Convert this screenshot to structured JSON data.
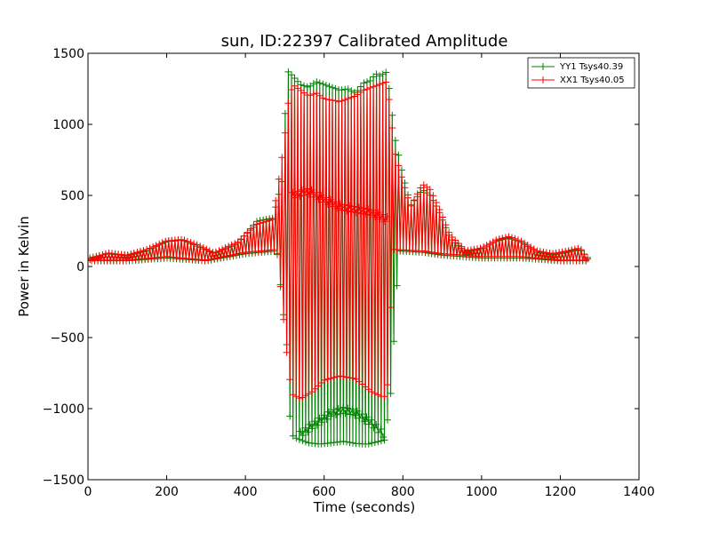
{
  "chart_data": {
    "type": "line",
    "title": "sun, ID:22397 Calibrated Amplitude",
    "xlabel": "Time (seconds)",
    "ylabel": "Power in Kelvin",
    "xlim": [
      0,
      1400
    ],
    "ylim": [
      -1500,
      1500
    ],
    "xticks": [
      0,
      200,
      400,
      600,
      800,
      1000,
      1200,
      1400
    ],
    "yticks": [
      -1500,
      -1000,
      -500,
      0,
      500,
      1000,
      1500
    ],
    "grid": false,
    "legend_position": "top-right",
    "marker": "+",
    "series": [
      {
        "name": "YY1 Tsys40.39",
        "color": "#008000",
        "upper": [
          [
            5,
            60
          ],
          [
            50,
            90
          ],
          [
            100,
            75
          ],
          [
            150,
            110
          ],
          [
            200,
            175
          ],
          [
            240,
            185
          ],
          [
            280,
            140
          ],
          [
            320,
            90
          ],
          [
            380,
            160
          ],
          [
            430,
            320
          ],
          [
            470,
            340
          ],
          [
            495,
            620
          ],
          [
            500,
            1000
          ],
          [
            505,
            1380
          ],
          [
            520,
            1340
          ],
          [
            540,
            1280
          ],
          [
            560,
            1260
          ],
          [
            580,
            1300
          ],
          [
            600,
            1280
          ],
          [
            620,
            1260
          ],
          [
            640,
            1240
          ],
          [
            660,
            1250
          ],
          [
            680,
            1220
          ],
          [
            700,
            1290
          ],
          [
            720,
            1310
          ],
          [
            730,
            1360
          ],
          [
            740,
            1340
          ],
          [
            760,
            1370
          ],
          [
            780,
            900
          ],
          [
            800,
            640
          ],
          [
            820,
            430
          ],
          [
            850,
            540
          ],
          [
            870,
            500
          ],
          [
            890,
            400
          ],
          [
            920,
            200
          ],
          [
            960,
            100
          ],
          [
            1000,
            120
          ],
          [
            1040,
            180
          ],
          [
            1070,
            200
          ],
          [
            1100,
            170
          ],
          [
            1140,
            100
          ],
          [
            1180,
            80
          ],
          [
            1220,
            100
          ],
          [
            1250,
            120
          ],
          [
            1270,
            60
          ]
        ],
        "lower": [
          [
            5,
            40
          ],
          [
            100,
            40
          ],
          [
            200,
            60
          ],
          [
            300,
            40
          ],
          [
            400,
            90
          ],
          [
            480,
            110
          ],
          [
            505,
            -550
          ],
          [
            515,
            -1180
          ],
          [
            530,
            -1210
          ],
          [
            560,
            -1240
          ],
          [
            590,
            -1250
          ],
          [
            620,
            -1240
          ],
          [
            650,
            -1230
          ],
          [
            680,
            -1245
          ],
          [
            710,
            -1250
          ],
          [
            740,
            -1230
          ],
          [
            755,
            -1220
          ],
          [
            770,
            -870
          ],
          [
            790,
            110
          ],
          [
            850,
            100
          ],
          [
            900,
            80
          ],
          [
            1000,
            60
          ],
          [
            1100,
            60
          ],
          [
            1200,
            40
          ],
          [
            1270,
            40
          ]
        ],
        "inner_arc": [
          [
            540,
            -1180
          ],
          [
            580,
            -1100
          ],
          [
            620,
            -1030
          ],
          [
            650,
            -1010
          ],
          [
            680,
            -1030
          ],
          [
            720,
            -1100
          ],
          [
            750,
            -1180
          ]
        ]
      },
      {
        "name": "XX1 Tsys40.05",
        "color": "#ff0000",
        "upper": [
          [
            5,
            50
          ],
          [
            50,
            95
          ],
          [
            100,
            80
          ],
          [
            150,
            120
          ],
          [
            200,
            180
          ],
          [
            240,
            190
          ],
          [
            280,
            150
          ],
          [
            320,
            95
          ],
          [
            380,
            170
          ],
          [
            430,
            300
          ],
          [
            470,
            330
          ],
          [
            500,
            900
          ],
          [
            505,
            1100
          ],
          [
            520,
            1280
          ],
          [
            540,
            1240
          ],
          [
            560,
            1200
          ],
          [
            580,
            1220
          ],
          [
            600,
            1180
          ],
          [
            620,
            1170
          ],
          [
            640,
            1160
          ],
          [
            660,
            1180
          ],
          [
            680,
            1200
          ],
          [
            700,
            1240
          ],
          [
            720,
            1260
          ],
          [
            740,
            1280
          ],
          [
            760,
            1300
          ],
          [
            780,
            800
          ],
          [
            800,
            600
          ],
          [
            820,
            420
          ],
          [
            850,
            580
          ],
          [
            870,
            540
          ],
          [
            890,
            420
          ],
          [
            920,
            220
          ],
          [
            960,
            110
          ],
          [
            1000,
            130
          ],
          [
            1040,
            190
          ],
          [
            1070,
            210
          ],
          [
            1100,
            180
          ],
          [
            1140,
            110
          ],
          [
            1180,
            90
          ],
          [
            1220,
            110
          ],
          [
            1250,
            130
          ],
          [
            1270,
            50
          ]
        ],
        "lower": [
          [
            5,
            45
          ],
          [
            100,
            45
          ],
          [
            200,
            70
          ],
          [
            300,
            45
          ],
          [
            400,
            100
          ],
          [
            480,
            120
          ],
          [
            510,
            -750
          ],
          [
            520,
            -900
          ],
          [
            540,
            -930
          ],
          [
            570,
            -880
          ],
          [
            600,
            -800
          ],
          [
            640,
            -770
          ],
          [
            680,
            -790
          ],
          [
            720,
            -880
          ],
          [
            750,
            -920
          ],
          [
            760,
            -900
          ],
          [
            775,
            120
          ],
          [
            850,
            110
          ],
          [
            900,
            90
          ],
          [
            1000,
            70
          ],
          [
            1100,
            70
          ],
          [
            1200,
            45
          ],
          [
            1270,
            45
          ]
        ],
        "inner_arc": [
          [
            520,
            500
          ],
          [
            560,
            530
          ],
          [
            600,
            470
          ],
          [
            640,
            420
          ],
          [
            680,
            400
          ],
          [
            720,
            380
          ],
          [
            760,
            330
          ]
        ]
      }
    ]
  }
}
